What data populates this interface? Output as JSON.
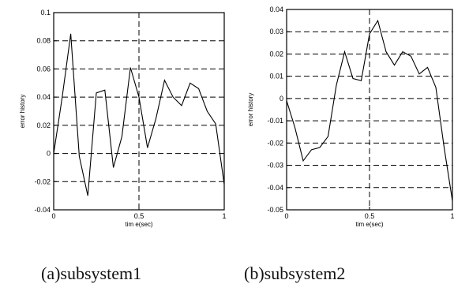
{
  "chart_data": [
    {
      "type": "line",
      "caption": "(a)subsystem1",
      "xlabel": "tim e(sec)",
      "ylabel": "error history",
      "xlim": [
        0,
        1
      ],
      "ylim": [
        -0.04,
        0.1
      ],
      "xticks": [
        "0",
        "0.5",
        "1"
      ],
      "yticks": [
        "0.1",
        "0.08",
        "0.06",
        "0.04",
        "0.02",
        "0",
        "-0.02",
        "-0.04"
      ],
      "grid": true,
      "series": [
        {
          "x": [
            0,
            0.05,
            0.1,
            0.15,
            0.2,
            0.25,
            0.3,
            0.35,
            0.4,
            0.45,
            0.5,
            0.55,
            0.6,
            0.65,
            0.7,
            0.75,
            0.8,
            0.85,
            0.9,
            0.95,
            1.0
          ],
          "y": [
            0,
            0.04,
            0.085,
            -0.002,
            -0.03,
            0.043,
            0.045,
            -0.01,
            0.012,
            0.061,
            0.04,
            0.004,
            0.025,
            0.052,
            0.04,
            0.034,
            0.05,
            0.046,
            0.03,
            0.021,
            -0.022
          ]
        }
      ]
    },
    {
      "type": "line",
      "caption": "(b)subsystem2",
      "xlabel": "tim e(sec)",
      "ylabel": "error history",
      "xlim": [
        0,
        1
      ],
      "ylim": [
        -0.05,
        0.04
      ],
      "xticks": [
        "0",
        "0.5",
        "1"
      ],
      "yticks": [
        "0.04",
        "0.03",
        "0.02",
        "0.01",
        "0",
        "-0.01",
        "-0.02",
        "-0.03",
        "-0.04",
        "-0.05"
      ],
      "grid": true,
      "series": [
        {
          "x": [
            0,
            0.05,
            0.1,
            0.15,
            0.2,
            0.25,
            0.3,
            0.35,
            0.4,
            0.45,
            0.5,
            0.55,
            0.6,
            0.65,
            0.7,
            0.75,
            0.8,
            0.85,
            0.9,
            0.95,
            1.0
          ],
          "y": [
            -0.001,
            -0.013,
            -0.028,
            -0.023,
            -0.022,
            -0.017,
            0.006,
            0.021,
            0.009,
            0.008,
            0.029,
            0.035,
            0.021,
            0.015,
            0.021,
            0.019,
            0.011,
            0.014,
            0.005,
            -0.022,
            -0.046
          ]
        }
      ]
    }
  ]
}
